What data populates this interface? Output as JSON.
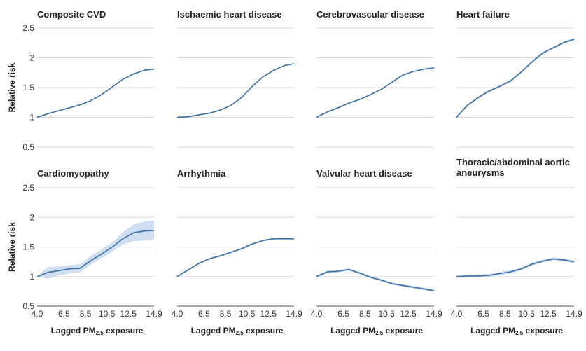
{
  "chart_data": {
    "type": "line",
    "layout": "2x4 small multiples",
    "ylabel": "Relative risk",
    "xlabel_parts": {
      "main": "Lagged PM",
      "sub": "2.5",
      "tail": " exposure"
    },
    "xlim": [
      4.0,
      14.9
    ],
    "ylim": [
      0.5,
      2.5
    ],
    "x_ticks": [
      "4.0",
      "6.5",
      "8.5",
      "10.5",
      "12.5",
      "14.9"
    ],
    "y_ticks": [
      "0.5",
      "1",
      "1.5",
      "2",
      "2.5"
    ],
    "grid": true,
    "colors": {
      "line": "#3a6fa8",
      "band": "#c7d9ef",
      "grid": "#d9d9d9",
      "text": "#222222"
    },
    "panels": [
      {
        "title_lines": [
          "Composite CVD"
        ],
        "points": [
          [
            4.0,
            1.0
          ],
          [
            5.0,
            1.06
          ],
          [
            6.0,
            1.11
          ],
          [
            7.0,
            1.16
          ],
          [
            8.0,
            1.21
          ],
          [
            9.0,
            1.28
          ],
          [
            10.0,
            1.38
          ],
          [
            11.0,
            1.51
          ],
          [
            12.0,
            1.64
          ],
          [
            13.0,
            1.73
          ],
          [
            14.0,
            1.79
          ],
          [
            14.9,
            1.81
          ]
        ],
        "band": 0.01
      },
      {
        "title_lines": [
          "Ischaemic heart disease"
        ],
        "points": [
          [
            4.0,
            1.0
          ],
          [
            5.0,
            1.01
          ],
          [
            6.0,
            1.04
          ],
          [
            7.0,
            1.07
          ],
          [
            8.0,
            1.12
          ],
          [
            9.0,
            1.2
          ],
          [
            10.0,
            1.33
          ],
          [
            11.0,
            1.52
          ],
          [
            12.0,
            1.68
          ],
          [
            13.0,
            1.79
          ],
          [
            14.0,
            1.87
          ],
          [
            14.9,
            1.9
          ]
        ],
        "band": 0.01
      },
      {
        "title_lines": [
          "Cerebrovascular disease"
        ],
        "points": [
          [
            4.0,
            1.0
          ],
          [
            5.0,
            1.09
          ],
          [
            6.0,
            1.16
          ],
          [
            7.0,
            1.24
          ],
          [
            8.0,
            1.3
          ],
          [
            9.0,
            1.38
          ],
          [
            10.0,
            1.47
          ],
          [
            11.0,
            1.59
          ],
          [
            12.0,
            1.71
          ],
          [
            13.0,
            1.77
          ],
          [
            14.0,
            1.81
          ],
          [
            14.9,
            1.83
          ]
        ],
        "band": 0.01
      },
      {
        "title_lines": [
          "Heart failure"
        ],
        "points": [
          [
            4.0,
            1.0
          ],
          [
            5.0,
            1.2
          ],
          [
            6.0,
            1.33
          ],
          [
            7.0,
            1.44
          ],
          [
            8.0,
            1.52
          ],
          [
            9.0,
            1.61
          ],
          [
            10.0,
            1.76
          ],
          [
            11.0,
            1.93
          ],
          [
            12.0,
            2.08
          ],
          [
            13.0,
            2.17
          ],
          [
            14.0,
            2.26
          ],
          [
            14.9,
            2.31
          ]
        ],
        "band": 0.02
      },
      {
        "title_lines": [
          "Cardiomyopathy"
        ],
        "points": [
          [
            4.0,
            1.0
          ],
          [
            5.0,
            1.07
          ],
          [
            6.0,
            1.1
          ],
          [
            7.0,
            1.13
          ],
          [
            8.0,
            1.14
          ],
          [
            9.0,
            1.27
          ],
          [
            10.0,
            1.38
          ],
          [
            11.0,
            1.5
          ],
          [
            12.0,
            1.64
          ],
          [
            13.0,
            1.74
          ],
          [
            14.0,
            1.77
          ],
          [
            14.9,
            1.78
          ]
        ],
        "band_lower": [
          1.0,
          0.96,
          1.02,
          1.05,
          1.07,
          1.2,
          1.31,
          1.42,
          1.54,
          1.6,
          1.61,
          1.62
        ],
        "band_upper": [
          1.0,
          1.16,
          1.17,
          1.19,
          1.21,
          1.35,
          1.46,
          1.58,
          1.75,
          1.88,
          1.93,
          1.95
        ]
      },
      {
        "title_lines": [
          "Arrhythmia"
        ],
        "points": [
          [
            4.0,
            1.0
          ],
          [
            5.0,
            1.11
          ],
          [
            6.0,
            1.22
          ],
          [
            7.0,
            1.3
          ],
          [
            8.0,
            1.35
          ],
          [
            9.0,
            1.41
          ],
          [
            10.0,
            1.47
          ],
          [
            11.0,
            1.55
          ],
          [
            12.0,
            1.61
          ],
          [
            13.0,
            1.64
          ],
          [
            14.0,
            1.64
          ],
          [
            14.9,
            1.64
          ]
        ],
        "band": 0.015
      },
      {
        "title_lines": [
          "Valvular heart disease"
        ],
        "points": [
          [
            4.0,
            1.0
          ],
          [
            5.0,
            1.08
          ],
          [
            6.0,
            1.09
          ],
          [
            7.0,
            1.12
          ],
          [
            8.0,
            1.06
          ],
          [
            9.0,
            0.99
          ],
          [
            10.0,
            0.94
          ],
          [
            11.0,
            0.88
          ],
          [
            12.0,
            0.85
          ],
          [
            13.0,
            0.82
          ],
          [
            14.0,
            0.79
          ],
          [
            14.9,
            0.76
          ]
        ],
        "band": 0.02
      },
      {
        "title_lines": [
          "Thoracic/abdominal aortic",
          "aneurysms"
        ],
        "points": [
          [
            4.0,
            1.0
          ],
          [
            5.0,
            1.01
          ],
          [
            6.0,
            1.01
          ],
          [
            7.0,
            1.02
          ],
          [
            8.0,
            1.05
          ],
          [
            9.0,
            1.08
          ],
          [
            10.0,
            1.13
          ],
          [
            11.0,
            1.21
          ],
          [
            12.0,
            1.26
          ],
          [
            13.0,
            1.3
          ],
          [
            14.0,
            1.28
          ],
          [
            14.9,
            1.25
          ]
        ],
        "band": 0.025
      }
    ]
  }
}
